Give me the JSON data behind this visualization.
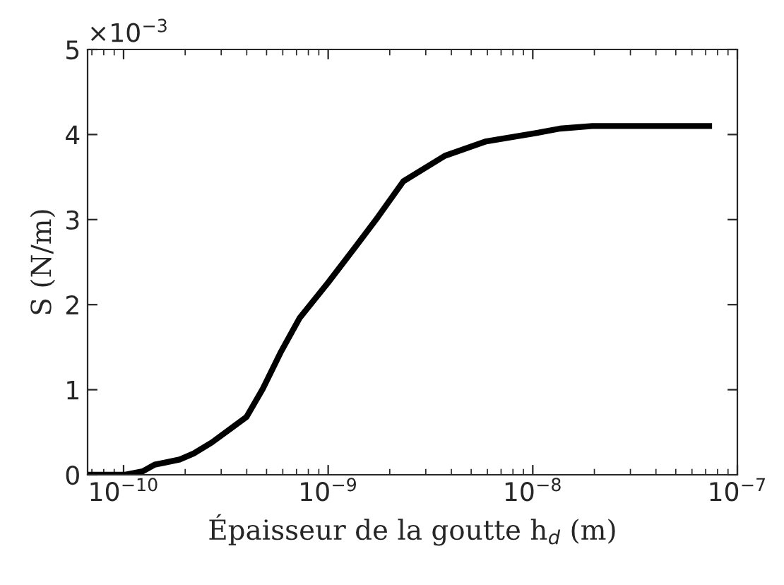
{
  "chart_data": {
    "type": "line",
    "xlabel": "Épaisseur de la goutte h$_{d}$ (m)",
    "ylabel": "S (N/m)",
    "annotations": [
      "×10$^{−3}$"
    ],
    "x": [
      6.67e-11,
      1.01e-10,
      1.24e-10,
      1.42e-10,
      1.57e-10,
      1.88e-10,
      2.2e-10,
      2.7e-10,
      3.33e-10,
      3.99e-10,
      4.79e-10,
      5.89e-10,
      7.24e-10,
      1e-09,
      1.35e-09,
      1.75e-09,
      2.33e-09,
      3.72e-09,
      5.92e-09,
      1e-08,
      1.36e-08,
      1.95e-08,
      7.52e-08
    ],
    "series": [
      {
        "color": "#000000",
        "values": [
          0.0,
          0.0,
          0.04,
          0.12,
          0.14,
          0.18,
          0.25,
          0.38,
          0.54,
          0.68,
          1.01,
          1.45,
          1.84,
          2.26,
          2.67,
          3.03,
          3.45,
          3.75,
          3.92,
          4.01,
          4.07,
          4.1,
          4.1
        ]
      }
    ],
    "log": "x",
    "xlim": [
      6.67e-11,
      1e-07
    ],
    "ylim": [
      0,
      5
    ],
    "xticks": [
      {
        "value": 1e-10,
        "label": "10$^{−10}$"
      },
      {
        "value": 1e-09,
        "label": "10$^{−9}$"
      },
      {
        "value": 1e-08,
        "label": "10$^{−8}$"
      },
      {
        "value": 1e-07,
        "label": "10$^{−7}$"
      }
    ],
    "yticks": [
      0,
      1,
      2,
      3,
      4,
      5
    ],
    "grid": false,
    "marker": "none",
    "line_style": "solid"
  }
}
